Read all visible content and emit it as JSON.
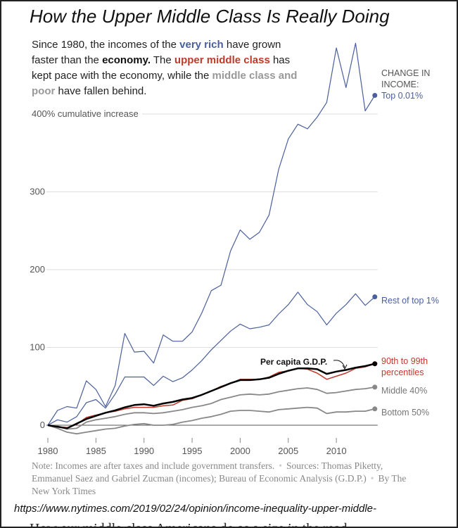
{
  "title": "How the Upper Middle Class Is Really Doing",
  "intro": {
    "p1": "Since 1980, the incomes of the ",
    "very_rich": "very rich",
    "p2": " have grown faster than the ",
    "economy": "economy.",
    "p3": " The ",
    "umc": "upper middle class",
    "p4": " has kept pace with the economy, while the ",
    "poor": "middle class and poor",
    "p5": " have fallen behind."
  },
  "note": {
    "n1": "Note: Incomes are after taxes and include government transfers.",
    "sep": "•",
    "n2": "Sources: Thomas Piketty, Emmanuel Saez and Gabriel Zucman (incomes); Bureau of Economic Analysis (G.D.P.)",
    "n3": "By The New York Times"
  },
  "url": "https://www.nytimes.com/2019/02/24/opinion/income-inequality-upper-middle-",
  "cut_text": "How our middle class Americans do as a size in the read",
  "chart_data": {
    "type": "line",
    "title": "How the Upper Middle Class Is Really Doing",
    "ylabel_top": "400% cumulative increase",
    "legend_header": "CHANGE IN INCOME:",
    "x": [
      1980,
      1981,
      1982,
      1983,
      1984,
      1985,
      1986,
      1987,
      1988,
      1989,
      1990,
      1991,
      1992,
      1993,
      1994,
      1995,
      1996,
      1997,
      1998,
      1999,
      2000,
      2001,
      2002,
      2003,
      2004,
      2005,
      2006,
      2007,
      2008,
      2009,
      2010,
      2011,
      2012,
      2013,
      2014
    ],
    "xticks": [
      1980,
      1985,
      1990,
      1995,
      2000,
      2005,
      2010
    ],
    "yticks": [
      0,
      100,
      200,
      300,
      400
    ],
    "ytick_labels": [
      "0",
      "100",
      "200",
      "300",
      "400% cumulative increase"
    ],
    "ylim": [
      -15,
      480
    ],
    "annotation": "Per capita G.D.P.",
    "series": [
      {
        "name": "Top 0.01%",
        "color": "#4a5f9c",
        "width": 1.2,
        "values": [
          0,
          19,
          24,
          22,
          57,
          46,
          24,
          51,
          118,
          94,
          95,
          80,
          116,
          108,
          108,
          120,
          144,
          173,
          180,
          224,
          251,
          239,
          248,
          270,
          329,
          368,
          387,
          381,
          396,
          415,
          485,
          434,
          491,
          404,
          424
        ]
      },
      {
        "name": "Rest of top 1%",
        "color": "#4a5f9c",
        "width": 1.2,
        "values": [
          0,
          7,
          4,
          11,
          29,
          33,
          22,
          40,
          62,
          62,
          62,
          51,
          63,
          56,
          61,
          71,
          83,
          97,
          109,
          121,
          130,
          124,
          126,
          129,
          143,
          155,
          171,
          155,
          146,
          129,
          144,
          155,
          169,
          154,
          165
        ]
      },
      {
        "name": "Middle 40%",
        "color": "#888",
        "width": 1.8,
        "values": [
          0,
          -1,
          -5,
          -4,
          4,
          7,
          9,
          11,
          14,
          16,
          16,
          15,
          16,
          18,
          20,
          23,
          25,
          28,
          33,
          36,
          39,
          40,
          39,
          40,
          43,
          45,
          47,
          48,
          46,
          41,
          42,
          44,
          46,
          47,
          49
        ]
      },
      {
        "name": "Bottom 50%",
        "color": "#888",
        "width": 1.8,
        "values": [
          0,
          -4,
          -9,
          -11,
          -9,
          -7,
          -5,
          -4,
          -1,
          1,
          2,
          0,
          0,
          1,
          4,
          6,
          9,
          11,
          14,
          18,
          19,
          19,
          18,
          17,
          20,
          21,
          22,
          23,
          22,
          15,
          17,
          17,
          18,
          18,
          21
        ]
      },
      {
        "name": "90th to 99th percentiles",
        "color": "#c0392b",
        "width": 1.5,
        "values": [
          0,
          -2,
          -3,
          1,
          10,
          13,
          16,
          18,
          21,
          23,
          23,
          23,
          25,
          26,
          32,
          34,
          39,
          44,
          50,
          54,
          59,
          59,
          59,
          62,
          68,
          70,
          73,
          72,
          67,
          59,
          63,
          67,
          73,
          75,
          79
        ]
      },
      {
        "name": "Per capita G.D.P.",
        "color": "#000",
        "width": 2.5,
        "values": [
          0,
          -2,
          -4,
          2,
          8,
          12,
          16,
          19,
          23,
          26,
          27,
          25,
          28,
          30,
          33,
          35,
          39,
          44,
          49,
          54,
          58,
          58,
          59,
          61,
          66,
          70,
          73,
          73,
          72,
          66,
          69,
          71,
          74,
          76,
          79
        ]
      }
    ],
    "labels": {
      "top001": "Top 0.01%",
      "rest1": "Rest of top 1%",
      "p90a": "90th to 99th",
      "p90b": "percentiles",
      "mid": "Middle 40%",
      "bot": "Bottom 50%"
    }
  }
}
